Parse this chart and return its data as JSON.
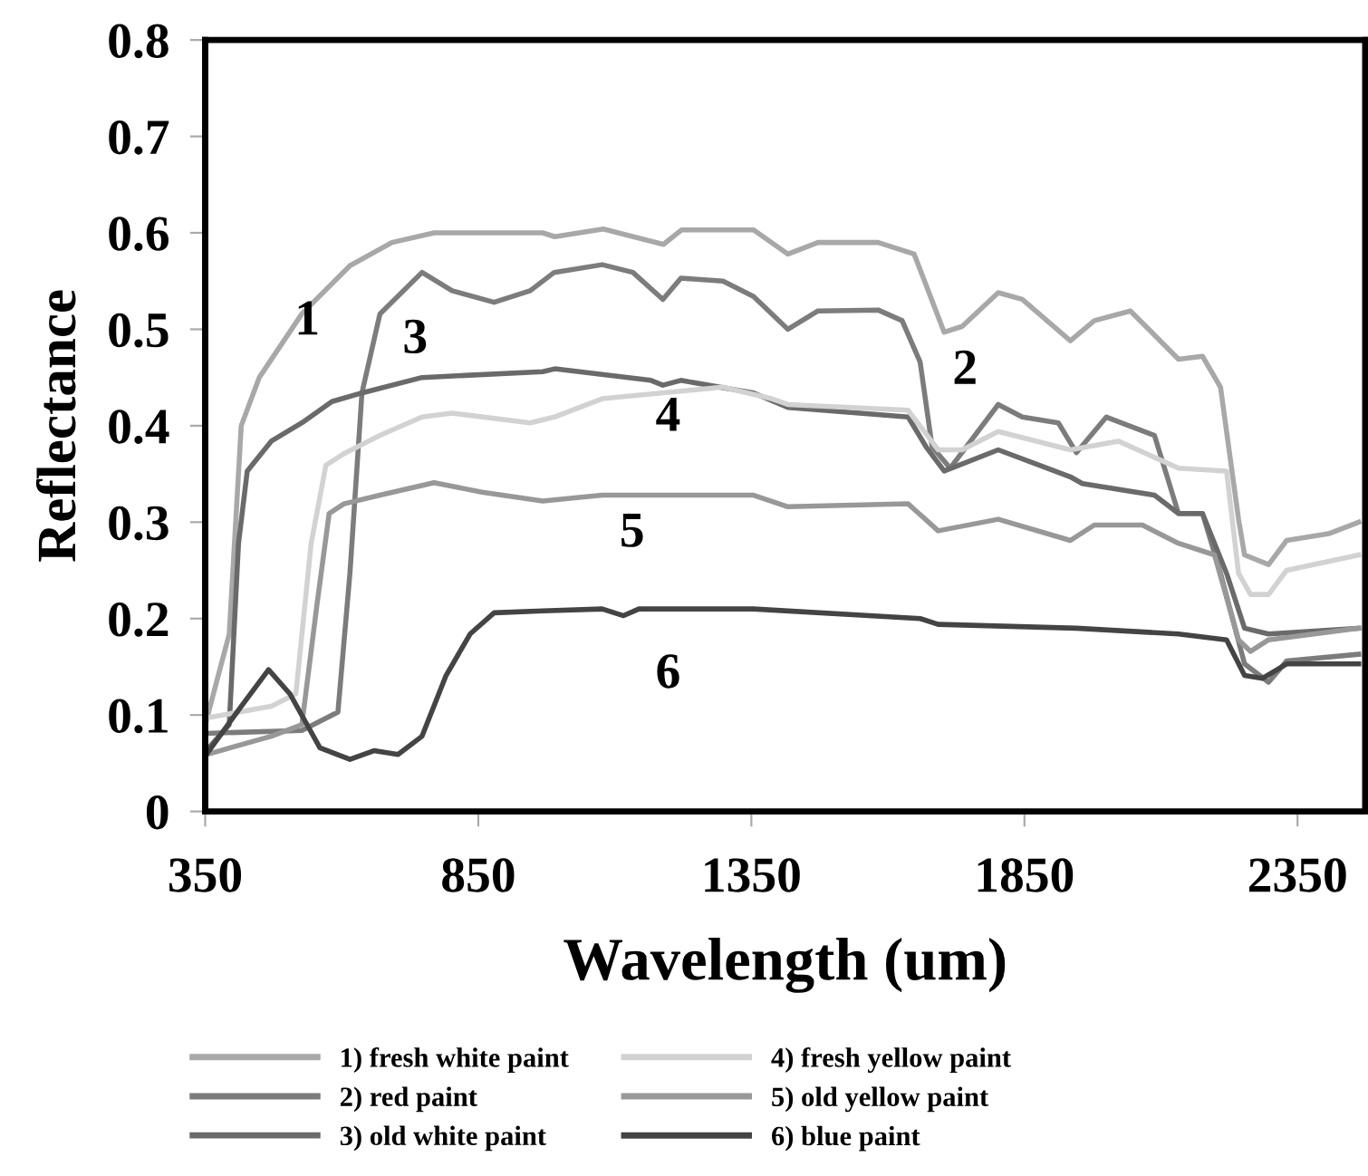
{
  "chart_data": {
    "type": "line",
    "xlabel": "Wavelength (um)",
    "ylabel": "Reflectance",
    "xlim": [
      350,
      2474
    ],
    "xticks": [
      350,
      850,
      1350,
      1850,
      2350
    ],
    "ylim": [
      0,
      0.8
    ],
    "yticks": [
      0,
      0.1,
      0.2,
      0.3,
      0.4,
      0.5,
      0.6,
      0.7,
      0.8
    ],
    "grid": false,
    "legend": "bottom",
    "marker": "none",
    "line_style": "solid",
    "annotations": [
      "1",
      "2",
      "3",
      "4",
      "5",
      "6"
    ],
    "series": [
      {
        "name": "1) fresh white paint",
        "color": "#a8a8a8",
        "x": [
          352,
          394,
          416,
          449,
          527,
          615,
          692,
          769,
          968,
          990,
          1079,
          1189,
          1222,
          1354,
          1417,
          1472,
          1582,
          1648,
          1703,
          1736,
          1802,
          1846,
          1934,
          1978,
          2044,
          2132,
          2176,
          2209,
          2242,
          2253,
          2297,
          2330,
          2407,
          2462
        ],
        "values": [
          0.094,
          0.184,
          0.4,
          0.45,
          0.516,
          0.566,
          0.59,
          0.6,
          0.6,
          0.596,
          0.604,
          0.588,
          0.603,
          0.603,
          0.578,
          0.59,
          0.59,
          0.578,
          0.497,
          0.503,
          0.538,
          0.531,
          0.488,
          0.509,
          0.519,
          0.469,
          0.472,
          0.44,
          0.303,
          0.266,
          0.256,
          0.281,
          0.288,
          0.3
        ]
      },
      {
        "name": "2) red paint",
        "color": "#7c7c7c",
        "x": [
          352,
          527,
          593,
          615,
          637,
          670,
          747,
          802,
          879,
          945,
          989,
          1077,
          1133,
          1188,
          1221,
          1298,
          1354,
          1417,
          1472,
          1582,
          1626,
          1659,
          1681,
          1714,
          1802,
          1846,
          1912,
          1945,
          2000,
          2088,
          2132,
          2176,
          2209,
          2253,
          2297,
          2330,
          2462
        ],
        "values": [
          0.081,
          0.084,
          0.103,
          0.247,
          0.434,
          0.516,
          0.559,
          0.54,
          0.528,
          0.54,
          0.559,
          0.567,
          0.559,
          0.531,
          0.553,
          0.55,
          0.534,
          0.5,
          0.519,
          0.52,
          0.509,
          0.466,
          0.378,
          0.356,
          0.422,
          0.409,
          0.403,
          0.372,
          0.409,
          0.39,
          0.309,
          0.309,
          0.247,
          0.153,
          0.134,
          0.156,
          0.163
        ]
      },
      {
        "name": "3) old white paint",
        "color": "#6a6a6a",
        "x": [
          352,
          394,
          411,
          427,
          471,
          527,
          582,
          637,
          747,
          968,
          990,
          1166,
          1188,
          1221,
          1354,
          1417,
          1637,
          1670,
          1703,
          1802,
          1934,
          1956,
          2088,
          2132,
          2176,
          2220,
          2253,
          2297,
          2462
        ],
        "values": [
          0.063,
          0.09,
          0.278,
          0.353,
          0.384,
          0.403,
          0.425,
          0.434,
          0.45,
          0.456,
          0.459,
          0.447,
          0.442,
          0.447,
          0.434,
          0.419,
          0.409,
          0.378,
          0.353,
          0.375,
          0.347,
          0.34,
          0.328,
          0.309,
          0.309,
          0.247,
          0.19,
          0.184,
          0.19
        ]
      },
      {
        "name": "4) fresh yellow paint",
        "color": "#d2d2d2",
        "x": [
          352,
          471,
          516,
          544,
          571,
          604,
          670,
          747,
          802,
          945,
          989,
          1077,
          1298,
          1387,
          1417,
          1637,
          1692,
          1736,
          1802,
          1934,
          2022,
          2132,
          2220,
          2242,
          2264,
          2297,
          2330,
          2462
        ],
        "values": [
          0.097,
          0.109,
          0.122,
          0.278,
          0.359,
          0.371,
          0.39,
          0.409,
          0.413,
          0.403,
          0.409,
          0.428,
          0.44,
          0.428,
          0.422,
          0.416,
          0.375,
          0.375,
          0.394,
          0.375,
          0.384,
          0.356,
          0.353,
          0.247,
          0.225,
          0.225,
          0.25,
          0.266
        ]
      },
      {
        "name": "5) old yellow paint",
        "color": "#989898",
        "x": [
          352,
          471,
          527,
          555,
          577,
          604,
          670,
          769,
          857,
          968,
          1077,
          1354,
          1417,
          1637,
          1692,
          1802,
          1934,
          1978,
          2066,
          2132,
          2198,
          2242,
          2264,
          2297,
          2462
        ],
        "values": [
          0.059,
          0.078,
          0.09,
          0.216,
          0.309,
          0.319,
          0.328,
          0.341,
          0.331,
          0.322,
          0.328,
          0.328,
          0.316,
          0.319,
          0.291,
          0.303,
          0.281,
          0.297,
          0.297,
          0.278,
          0.266,
          0.178,
          0.166,
          0.178,
          0.19
        ]
      },
      {
        "name": "6) blue paint",
        "color": "#444444",
        "x": [
          352,
          416,
          466,
          505,
          560,
          615,
          659,
          703,
          747,
          791,
          835,
          879,
          968,
          1077,
          1116,
          1144,
          1354,
          1659,
          1692,
          1945,
          2132,
          2220,
          2253,
          2286,
          2330,
          2462
        ],
        "values": [
          0.059,
          0.109,
          0.147,
          0.122,
          0.066,
          0.054,
          0.063,
          0.059,
          0.078,
          0.141,
          0.184,
          0.206,
          0.208,
          0.21,
          0.203,
          0.21,
          0.21,
          0.2,
          0.194,
          0.19,
          0.184,
          0.178,
          0.141,
          0.138,
          0.153,
          0.153
        ]
      }
    ]
  }
}
